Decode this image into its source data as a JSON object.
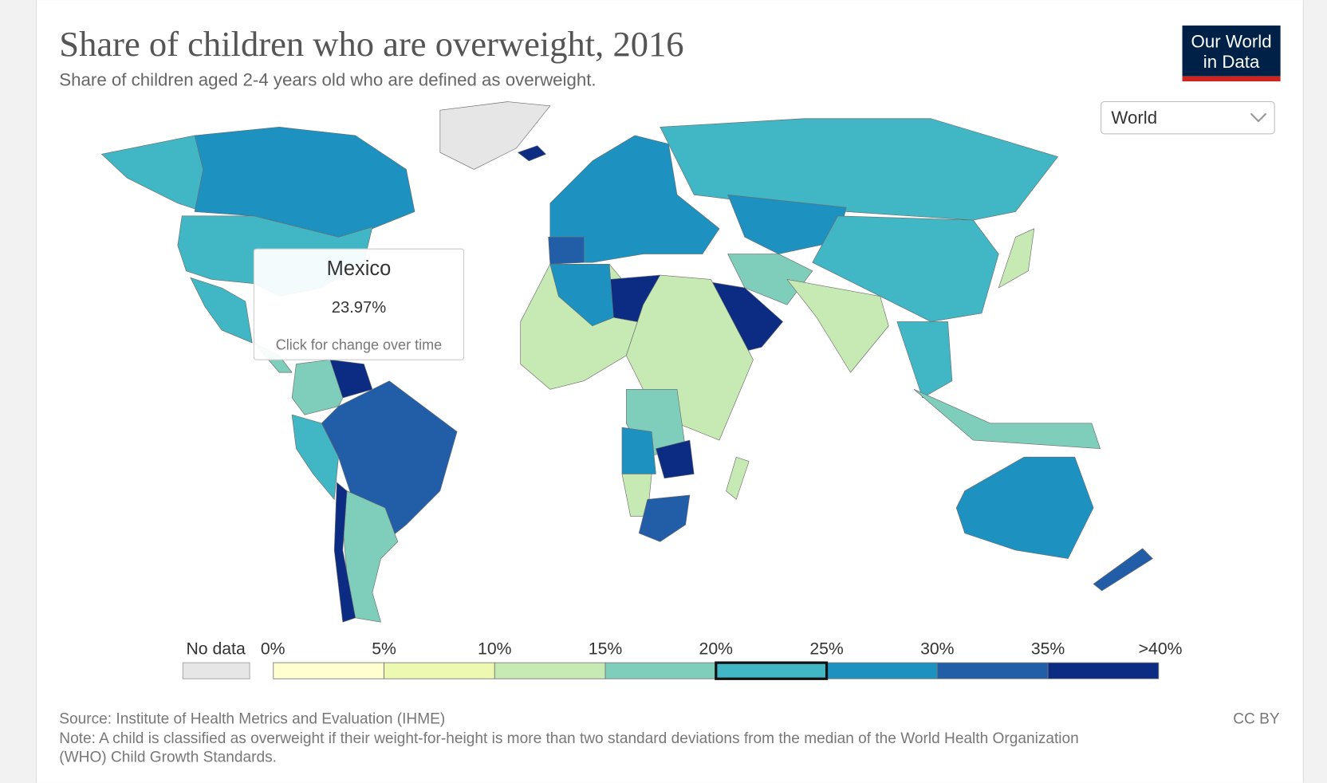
{
  "header": {
    "title": "Share of children who are overweight, 2016",
    "subtitle": "Share of children aged 2-4 years old who are defined as overweight.",
    "logo": [
      "Our World",
      "in Data"
    ]
  },
  "region_select": "World",
  "tooltip": {
    "country": "Mexico",
    "value": "23.97%",
    "hint": "Click for change over time"
  },
  "legend": {
    "no_data": "No data",
    "ticks": [
      {
        "value": 0,
        "label": "0%"
      },
      {
        "value": 5,
        "label": "5%"
      },
      {
        "value": 10,
        "label": "10%"
      },
      {
        "value": 15,
        "label": "15%"
      },
      {
        "value": 20,
        "label": "20%"
      },
      {
        "value": 25,
        "label": "25%"
      },
      {
        "value": 30,
        "label": "30%"
      },
      {
        "value": 35,
        "label": "35%"
      },
      {
        "value": 40,
        "label": ">40%"
      }
    ],
    "colors": [
      "#ffffd0",
      "#edf8b1",
      "#c7e9b4",
      "#7fcdbb",
      "#41b6c4",
      "#1d91c0",
      "#225ea8",
      "#0c2c84"
    ],
    "highlighted_bin": 4
  },
  "footer": {
    "source": "Source: Institute of Health Metrics and Evaluation (IHME)",
    "license": "CC BY",
    "note": [
      "Note: A child is classified as overweight if their weight-for-height is more than two standard deviations from the median of the World Health Organization",
      "(WHO) Child Growth Standards."
    ]
  }
}
